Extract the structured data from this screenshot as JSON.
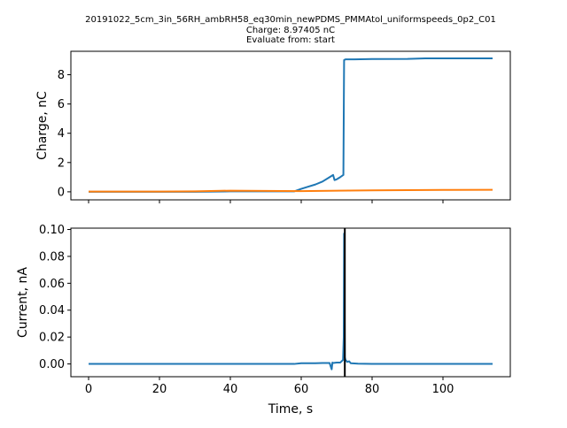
{
  "figure": {
    "title_lines": [
      "20191022_5cm_3in_56RH_ambRH58_eq30min_newPDMS_PMMAtol_uniformspeeds_0p2_C01",
      "Charge: 8.97405 nC",
      "Evaluate from: start"
    ]
  },
  "chart_data": [
    {
      "type": "line",
      "title": "",
      "xlabel": "",
      "ylabel": "Charge, nC",
      "xlim": [
        -5,
        119
      ],
      "ylim": [
        -0.55,
        9.6
      ],
      "x_ticks": [
        0,
        20,
        40,
        60,
        80,
        100
      ],
      "x_tick_labels_visible": false,
      "y_ticks": [
        0,
        2,
        4,
        6,
        8
      ],
      "y_tick_labels": [
        "0",
        "2",
        "4",
        "6",
        "8"
      ],
      "grid": false,
      "legend": "none",
      "series": [
        {
          "color": "#1f77b4",
          "x": [
            0,
            10,
            20,
            30,
            40,
            50,
            58,
            60,
            62,
            64,
            66,
            68,
            69,
            69.4,
            70,
            71,
            71.9,
            72.1,
            72.5,
            73,
            75,
            80,
            90,
            95,
            100,
            110,
            114
          ],
          "y": [
            0.0,
            0.0,
            0.0,
            0.0,
            0.03,
            0.03,
            0.03,
            0.2,
            0.35,
            0.5,
            0.7,
            1.0,
            1.15,
            0.8,
            0.85,
            1.0,
            1.15,
            9.0,
            9.05,
            9.05,
            9.05,
            9.07,
            9.08,
            9.12,
            9.12,
            9.12,
            9.12
          ]
        },
        {
          "color": "#ff7f0e",
          "x": [
            0,
            20,
            30,
            40,
            60,
            80,
            100,
            114
          ],
          "y": [
            0.02,
            0.02,
            0.03,
            0.08,
            0.05,
            0.1,
            0.13,
            0.14
          ]
        }
      ]
    },
    {
      "type": "line",
      "title": "",
      "xlabel": "Time, s",
      "ylabel": "Current, nA",
      "xlim": [
        -5,
        119
      ],
      "ylim": [
        -0.0095,
        0.101
      ],
      "x_ticks": [
        0,
        20,
        40,
        60,
        80,
        100
      ],
      "x_tick_labels": [
        "0",
        "20",
        "40",
        "60",
        "80",
        "100"
      ],
      "y_ticks": [
        0.0,
        0.02,
        0.04,
        0.06,
        0.08,
        0.1
      ],
      "y_tick_labels": [
        "0.00",
        "0.02",
        "0.04",
        "0.06",
        "0.08",
        "0.10"
      ],
      "grid": false,
      "legend": "none",
      "vline_x": 72.3,
      "vline_color": "#000000",
      "series": [
        {
          "color": "#1f77b4",
          "x": [
            0,
            20,
            40,
            58,
            60,
            62,
            64,
            66,
            68,
            68.6,
            68.8,
            69,
            70,
            71,
            71.8,
            72.0,
            72.1,
            72.2,
            72.3,
            72.5,
            73,
            73.5,
            74,
            76,
            80,
            100,
            114
          ],
          "y": [
            0.0,
            0.0,
            0.0,
            0.0,
            0.0005,
            0.0005,
            0.0005,
            0.0007,
            0.0007,
            -0.004,
            0.001,
            0.0007,
            0.001,
            0.001,
            0.003,
            0.02,
            0.097,
            0.06,
            0.005,
            0.003,
            0.0015,
            0.002,
            0.0005,
            0.0002,
            0.0,
            0.0,
            0.0
          ]
        }
      ]
    }
  ]
}
